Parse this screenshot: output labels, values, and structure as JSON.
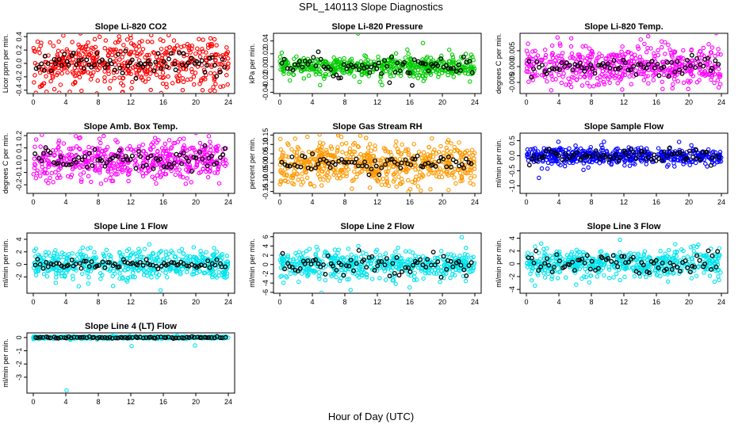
{
  "figure": {
    "title": "SPL_140113  Slope Diagnostics",
    "xlabel": "Hour of Day (UTC)"
  },
  "chart_data": [
    {
      "type": "scatter",
      "title": "Slope Li-820 CO2",
      "ylabel": "Licor ppm per min.",
      "xlim": [
        0,
        24
      ],
      "ylim": [
        -0.45,
        0.45
      ],
      "yticks": [
        -0.4,
        -0.2,
        0.0,
        0.2,
        0.4
      ],
      "ytick_labels": [
        "-0.4",
        "-0.2",
        "0.0",
        "0.2",
        "0.4"
      ],
      "xticks": [
        0,
        4,
        8,
        12,
        16,
        20,
        24
      ],
      "xtick_labels": [
        "0",
        "4",
        "8",
        "12",
        "16",
        "20",
        "24"
      ],
      "color": "#ff0000",
      "spread": 0.2,
      "black_spread": 0.09,
      "n_points": 520,
      "n_black": 75
    },
    {
      "type": "scatter",
      "title": "Slope Li-820 Pressure",
      "ylabel": "kPa per min.",
      "xlim": [
        0,
        24
      ],
      "ylim": [
        -0.042,
        0.052
      ],
      "yticks": [
        -0.04,
        -0.02,
        0.0,
        0.02,
        0.04
      ],
      "ytick_labels": [
        "-0.04",
        "-0.02",
        "0.00",
        "0.02",
        "0.04"
      ],
      "xticks": [
        0,
        4,
        8,
        12,
        16,
        20,
        24
      ],
      "xtick_labels": [
        "0",
        "4",
        "8",
        "12",
        "16",
        "20",
        "24"
      ],
      "color": "#00cc00",
      "spread": 0.008,
      "black_spread": 0.008,
      "n_points": 520,
      "n_black": 75
    },
    {
      "type": "scatter",
      "title": "Slope Li-820 Temp.",
      "ylabel": "degrees C per min.",
      "xlim": [
        0,
        24
      ],
      "ylim": [
        -0.0085,
        0.0105
      ],
      "yticks": [
        -0.005,
        0.0,
        0.005
      ],
      "ytick_labels": [
        "-0.005",
        "0.000",
        "0.005"
      ],
      "xticks": [
        0,
        4,
        8,
        12,
        16,
        20,
        24
      ],
      "xtick_labels": [
        "0",
        "4",
        "8",
        "12",
        "16",
        "20",
        "24"
      ],
      "color": "#ff00ff",
      "spread": 0.003,
      "black_spread": 0.0015,
      "n_points": 520,
      "n_black": 75
    },
    {
      "type": "scatter",
      "title": "Slope Amb. Box Temp.",
      "ylabel": "degrees C per min.",
      "xlim": [
        0,
        24
      ],
      "ylim": [
        -0.27,
        0.22
      ],
      "yticks": [
        -0.2,
        -0.1,
        0.0,
        0.1,
        0.2
      ],
      "ytick_labels": [
        "-0.2",
        "-0.1",
        "0.0",
        "0.1",
        "0.2"
      ],
      "xticks": [
        0,
        4,
        8,
        12,
        16,
        20,
        24
      ],
      "xtick_labels": [
        "0",
        "4",
        "8",
        "12",
        "16",
        "20",
        "24"
      ],
      "color": "#ff00ff",
      "spread": 0.08,
      "black_spread": 0.04,
      "n_points": 520,
      "n_black": 75
    },
    {
      "type": "scatter",
      "title": "Slope Gas Stream RH",
      "ylabel": "percent per min.",
      "xlim": [
        0,
        24
      ],
      "ylim": [
        -0.16,
        0.16
      ],
      "yticks": [
        -0.15,
        -0.1,
        -0.05,
        0.0,
        0.05,
        0.1,
        0.15
      ],
      "ytick_labels": [
        "-0.15",
        "-0.10",
        "-0.05",
        "0.00",
        "0.05",
        "0.10",
        "0.15"
      ],
      "xticks": [
        0,
        4,
        8,
        12,
        16,
        20,
        24
      ],
      "xtick_labels": [
        "0",
        "4",
        "8",
        "12",
        "16",
        "20",
        "24"
      ],
      "color": "#ff9900",
      "spread": 0.055,
      "black_spread": 0.02,
      "n_points": 600,
      "n_black": 75
    },
    {
      "type": "scatter",
      "title": "Slope Sample Flow",
      "ylabel": "ml/min per min.",
      "xlim": [
        0,
        24
      ],
      "ylim": [
        -1.25,
        0.75
      ],
      "yticks": [
        -1.0,
        -0.5,
        0.0,
        0.5
      ],
      "ytick_labels": [
        "-1.0",
        "-0.5",
        "0.0",
        "0.5"
      ],
      "xticks": [
        0,
        4,
        8,
        12,
        16,
        20,
        24
      ],
      "xtick_labels": [
        "0",
        "4",
        "8",
        "12",
        "16",
        "20",
        "24"
      ],
      "color": "#0000ff",
      "spread": 0.13,
      "black_spread": 0.13,
      "n_points": 520,
      "n_black": 75
    },
    {
      "type": "scatter",
      "title": "Slope Line 1 Flow",
      "ylabel": "ml/min per min.",
      "xlim": [
        0,
        24
      ],
      "ylim": [
        -4.6,
        5.0
      ],
      "yticks": [
        -2,
        0,
        2,
        4
      ],
      "ytick_labels": [
        "-2",
        "0",
        "2",
        "4"
      ],
      "xticks": [
        0,
        4,
        8,
        12,
        16,
        20,
        24
      ],
      "xtick_labels": [
        "0",
        "4",
        "8",
        "12",
        "16",
        "20",
        "24"
      ],
      "color": "#00e5ee",
      "spread": 1.1,
      "black_spread": 0.35,
      "n_points": 520,
      "n_black": 75
    },
    {
      "type": "scatter",
      "title": "Slope Line 2 Flow",
      "ylabel": "ml/min per min.",
      "xlim": [
        0,
        24
      ],
      "ylim": [
        -6.2,
        6.8
      ],
      "yticks": [
        -6,
        -4,
        -2,
        0,
        2,
        4,
        6
      ],
      "ytick_labels": [
        "-6",
        "-4",
        "-2",
        "0",
        "2",
        "4",
        "6"
      ],
      "xticks": [
        0,
        4,
        8,
        12,
        16,
        20,
        24
      ],
      "xtick_labels": [
        "0",
        "4",
        "8",
        "12",
        "16",
        "20",
        "24"
      ],
      "color": "#00e5ee",
      "spread": 1.5,
      "black_spread": 1.3,
      "n_points": 520,
      "n_black": 75
    },
    {
      "type": "scatter",
      "title": "Slope Line 3 Flow",
      "ylabel": "ml/min per min.",
      "xlim": [
        0,
        24
      ],
      "ylim": [
        -4.6,
        4.8
      ],
      "yticks": [
        -4,
        -2,
        0,
        2,
        4
      ],
      "ytick_labels": [
        "-4",
        "-2",
        "0",
        "2",
        "4"
      ],
      "xticks": [
        0,
        4,
        8,
        12,
        16,
        20,
        24
      ],
      "xtick_labels": [
        "0",
        "4",
        "8",
        "12",
        "16",
        "20",
        "24"
      ],
      "color": "#00e5ee",
      "spread": 1.0,
      "black_spread": 1.0,
      "n_points": 520,
      "n_black": 75
    },
    {
      "type": "scatter",
      "title": "Slope Line 4 (LT) Flow",
      "ylabel": "ml/min per min.",
      "xlim": [
        0,
        24
      ],
      "ylim": [
        -4.2,
        0.35
      ],
      "yticks": [
        -3,
        -2,
        -1,
        0
      ],
      "ytick_labels": [
        "-3",
        "-2",
        "-1",
        "0"
      ],
      "xticks": [
        0,
        4,
        8,
        12,
        16,
        20,
        24
      ],
      "xtick_labels": [
        "0",
        "4",
        "8",
        "12",
        "16",
        "20",
        "24"
      ],
      "color": "#00e5ee",
      "spread": 0.04,
      "black_spread": 0.03,
      "n_points": 520,
      "n_black": 75,
      "outliers": [
        [
          4.1,
          -4.0
        ],
        [
          12.1,
          -0.65
        ],
        [
          19.9,
          -0.6
        ]
      ]
    }
  ]
}
